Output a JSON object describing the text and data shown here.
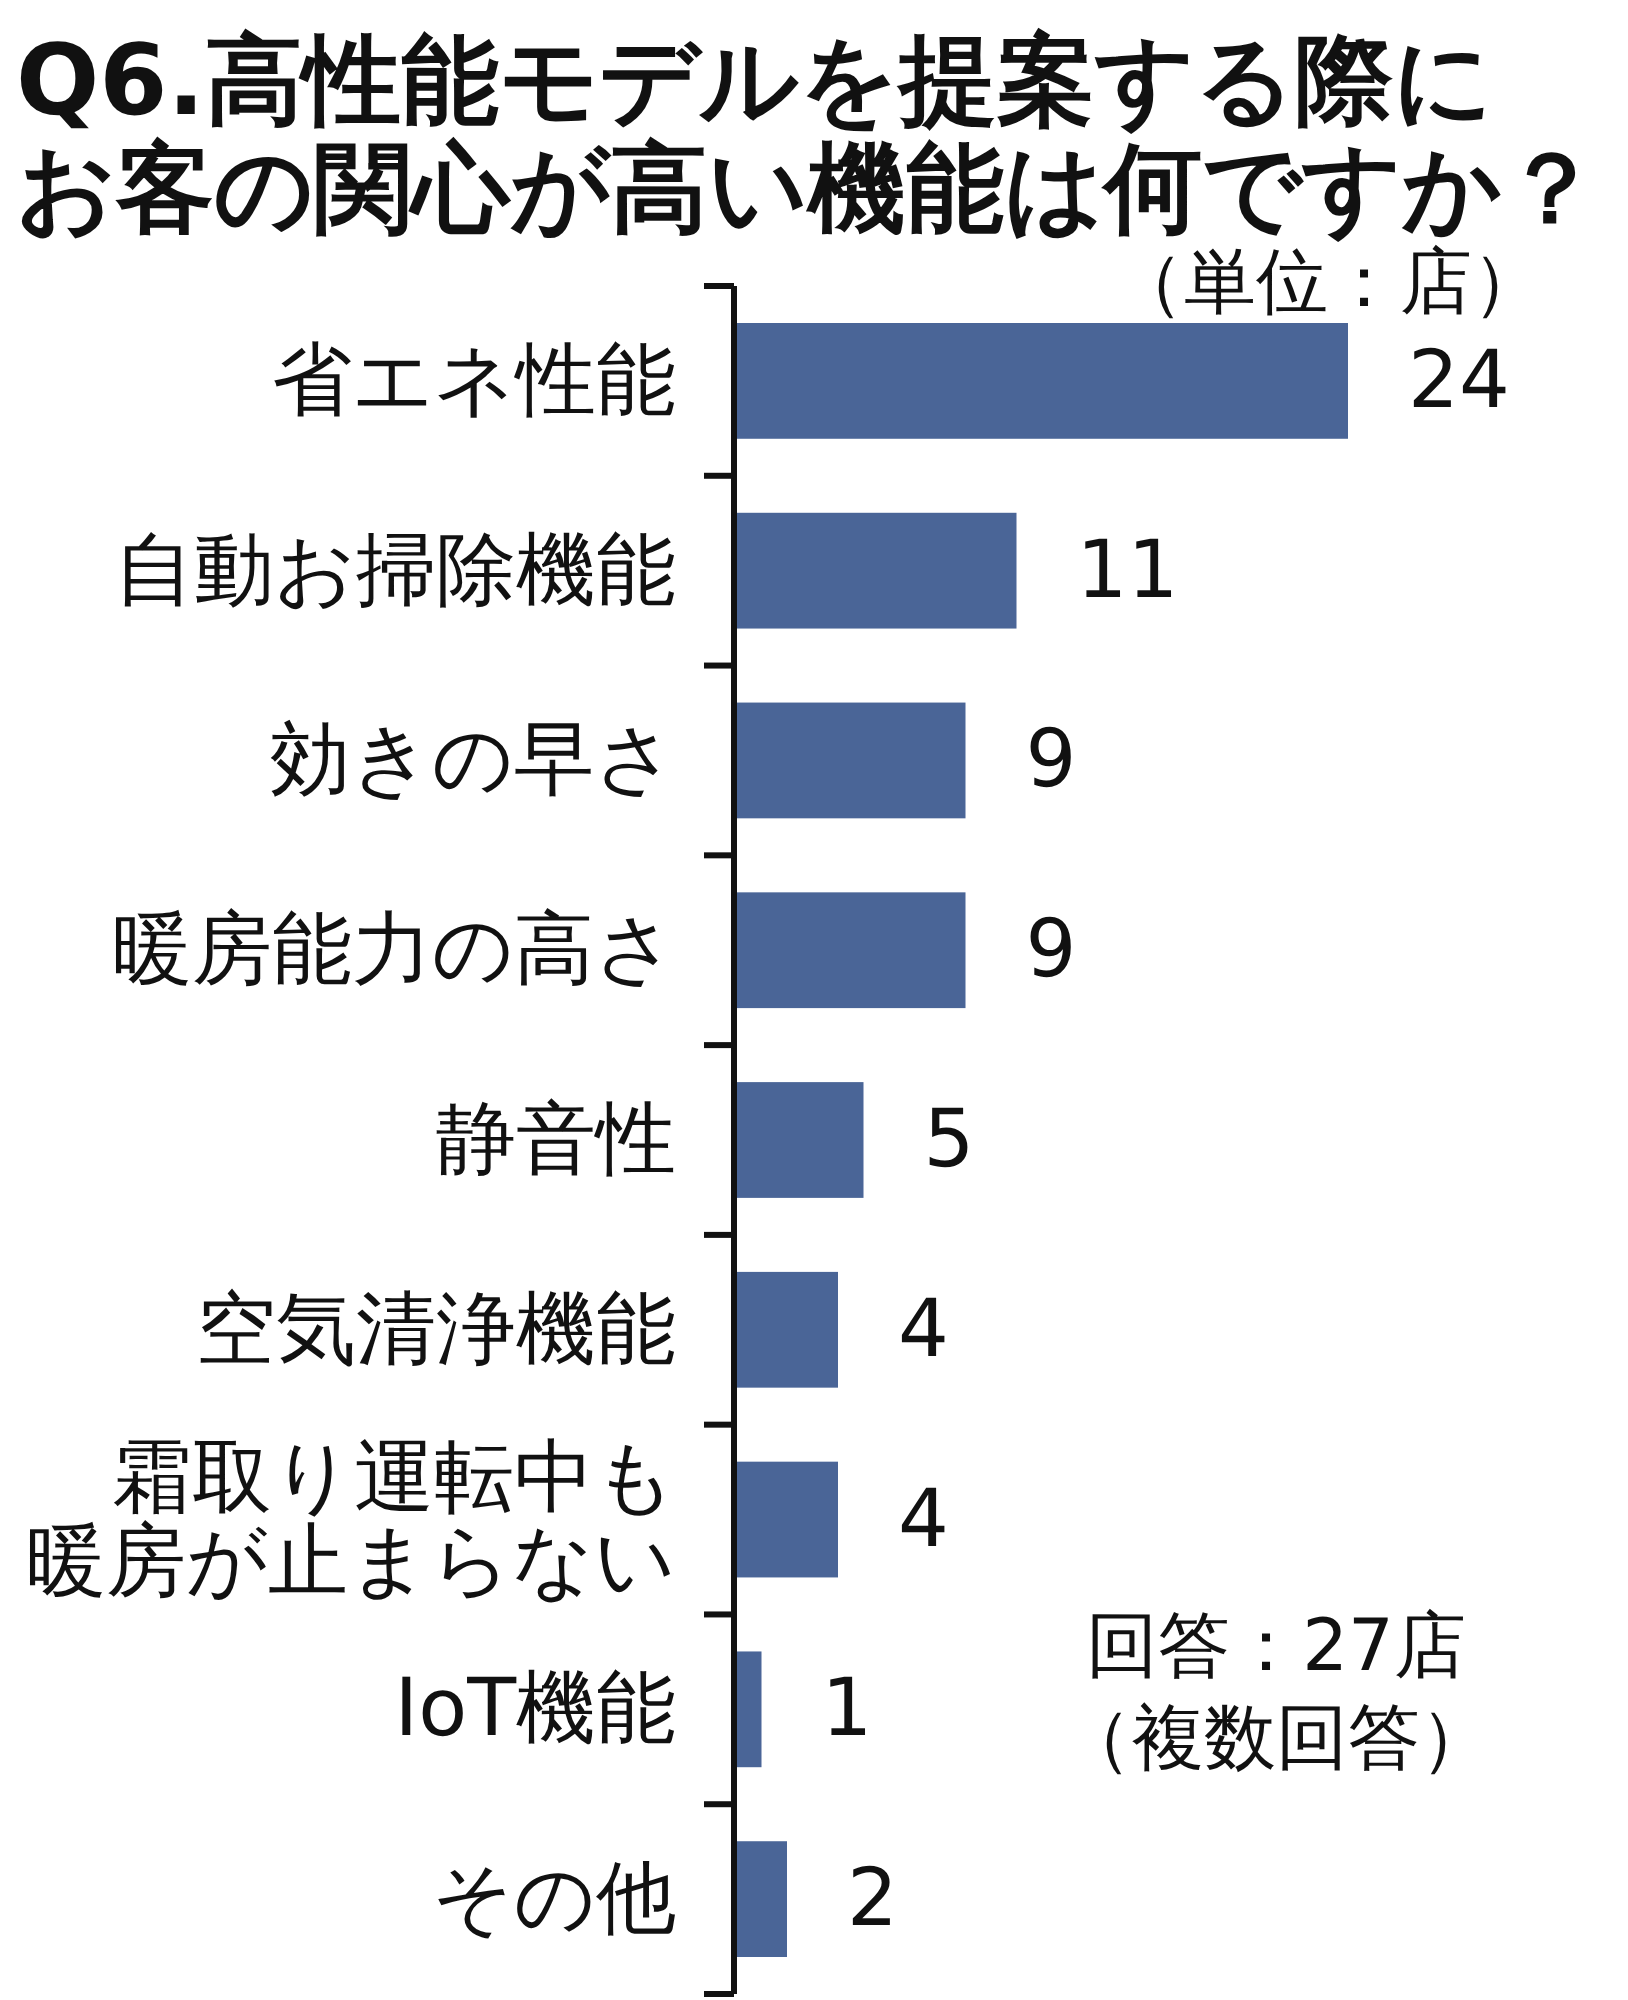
{
  "chart_data": {
    "type": "bar",
    "orientation": "horizontal",
    "title": "Q6.高性能モデルを提案する際にお客の関心が高い機能は何ですか？",
    "categories": [
      "省エネ性能",
      "自動お掃除機能",
      "効きの早さ",
      "暖房能力の高さ",
      "静音性",
      "空気清浄機能",
      "霜取り運転中も暖房が止まらない",
      "IoT機能",
      "その他"
    ],
    "values": [
      24,
      11,
      9,
      9,
      5,
      4,
      4,
      1,
      2
    ],
    "color": "#4a6597",
    "data_labels": true,
    "annotations": [
      "（単位：店）",
      "回答：27店（複数回答）"
    ]
  }
}
